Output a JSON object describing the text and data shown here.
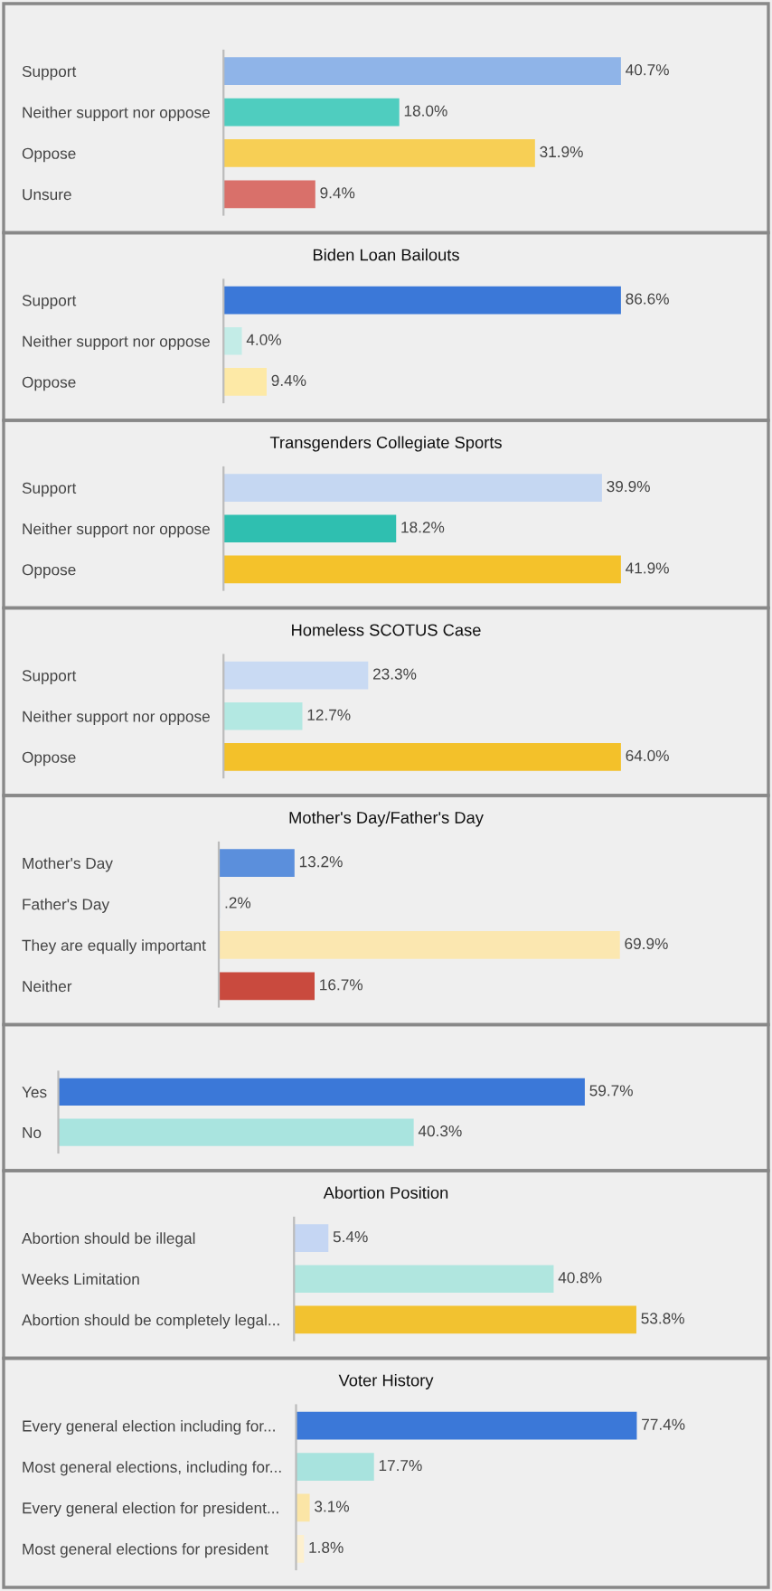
{
  "chart_data": [
    {
      "type": "bar",
      "orientation": "horizontal",
      "tick_labels": "y",
      "categories": [
        "Support",
        "Neither support nor oppose",
        "Oppose",
        "Unsure"
      ],
      "values": [
        40.7,
        18.0,
        31.9,
        9.4
      ],
      "value_labels": [
        "40.7%",
        "18.0%",
        "31.9%",
        "9.4%"
      ],
      "colors": [
        "#8fb4e8",
        "#4fcdbf",
        "#f7cf55",
        "#d9706a"
      ]
    },
    {
      "type": "bar",
      "orientation": "horizontal",
      "tick_labels": "y",
      "title": "Biden Loan Bailouts",
      "categories": [
        "Support",
        "Neither support nor oppose",
        "Oppose"
      ],
      "values": [
        86.6,
        4.0,
        9.4
      ],
      "value_labels": [
        "86.6%",
        "4.0%",
        "9.4%"
      ],
      "colors": [
        "#3b78d8",
        "#c3ece7",
        "#fde9a6"
      ]
    },
    {
      "type": "bar",
      "orientation": "horizontal",
      "tick_labels": "y",
      "title": "Transgenders Collegiate Sports",
      "categories": [
        "Support",
        "Neither support nor oppose",
        "Oppose"
      ],
      "values": [
        39.9,
        18.2,
        41.9
      ],
      "value_labels": [
        "39.9%",
        "18.2%",
        "41.9%"
      ],
      "colors": [
        "#c5d7f2",
        "#2fbfb0",
        "#f4c22b"
      ]
    },
    {
      "type": "bar",
      "orientation": "horizontal",
      "tick_labels": "y",
      "title": "Homeless SCOTUS Case",
      "categories": [
        "Support",
        "Neither support nor oppose",
        "Oppose"
      ],
      "values": [
        23.3,
        12.7,
        64.0
      ],
      "value_labels": [
        "23.3%",
        "12.7%",
        "64.0%"
      ],
      "colors": [
        "#c9daf3",
        "#b3e8e2",
        "#f3c12a"
      ]
    },
    {
      "type": "bar",
      "orientation": "horizontal",
      "tick_labels": "y",
      "title": "Mother's Day/Father's Day",
      "categories": [
        "Mother's Day",
        "Father's Day",
        "They are equally important",
        "Neither"
      ],
      "values": [
        13.2,
        0.2,
        69.9,
        16.7
      ],
      "value_labels": [
        "13.2%",
        ".2%",
        "69.9%",
        "16.7%"
      ],
      "colors": [
        "#5b8fdc",
        "#c9daf3",
        "#fbe7b0",
        "#c94a3e"
      ]
    },
    {
      "type": "bar",
      "orientation": "horizontal",
      "tick_labels": "y",
      "categories": [
        "Yes",
        "No"
      ],
      "values": [
        59.7,
        40.3
      ],
      "value_labels": [
        "59.7%",
        "40.3%"
      ],
      "colors": [
        "#3b78d8",
        "#a9e4df"
      ]
    },
    {
      "type": "bar",
      "orientation": "horizontal",
      "tick_labels": "y",
      "title": "Abortion Position",
      "categories": [
        "Abortion should be illegal",
        "Weeks Limitation",
        "Abortion should be completely legal..."
      ],
      "values": [
        5.4,
        40.8,
        53.8
      ],
      "value_labels": [
        "5.4%",
        "40.8%",
        "53.8%"
      ],
      "colors": [
        "#c5d6f3",
        "#b0e6df",
        "#f2c230"
      ]
    },
    {
      "type": "bar",
      "orientation": "horizontal",
      "tick_labels": "y",
      "title": "Voter History",
      "categories": [
        "Every general election including for...",
        "Most general elections, including for...",
        "Every general election for president...",
        "Most general elections for president"
      ],
      "values": [
        77.4,
        17.7,
        3.1,
        1.8
      ],
      "value_labels": [
        "77.4%",
        "17.7%",
        "3.1%",
        "1.8%"
      ],
      "colors": [
        "#3b78d8",
        "#a8e3de",
        "#fbe5a6",
        "#fdf0cf"
      ]
    }
  ]
}
